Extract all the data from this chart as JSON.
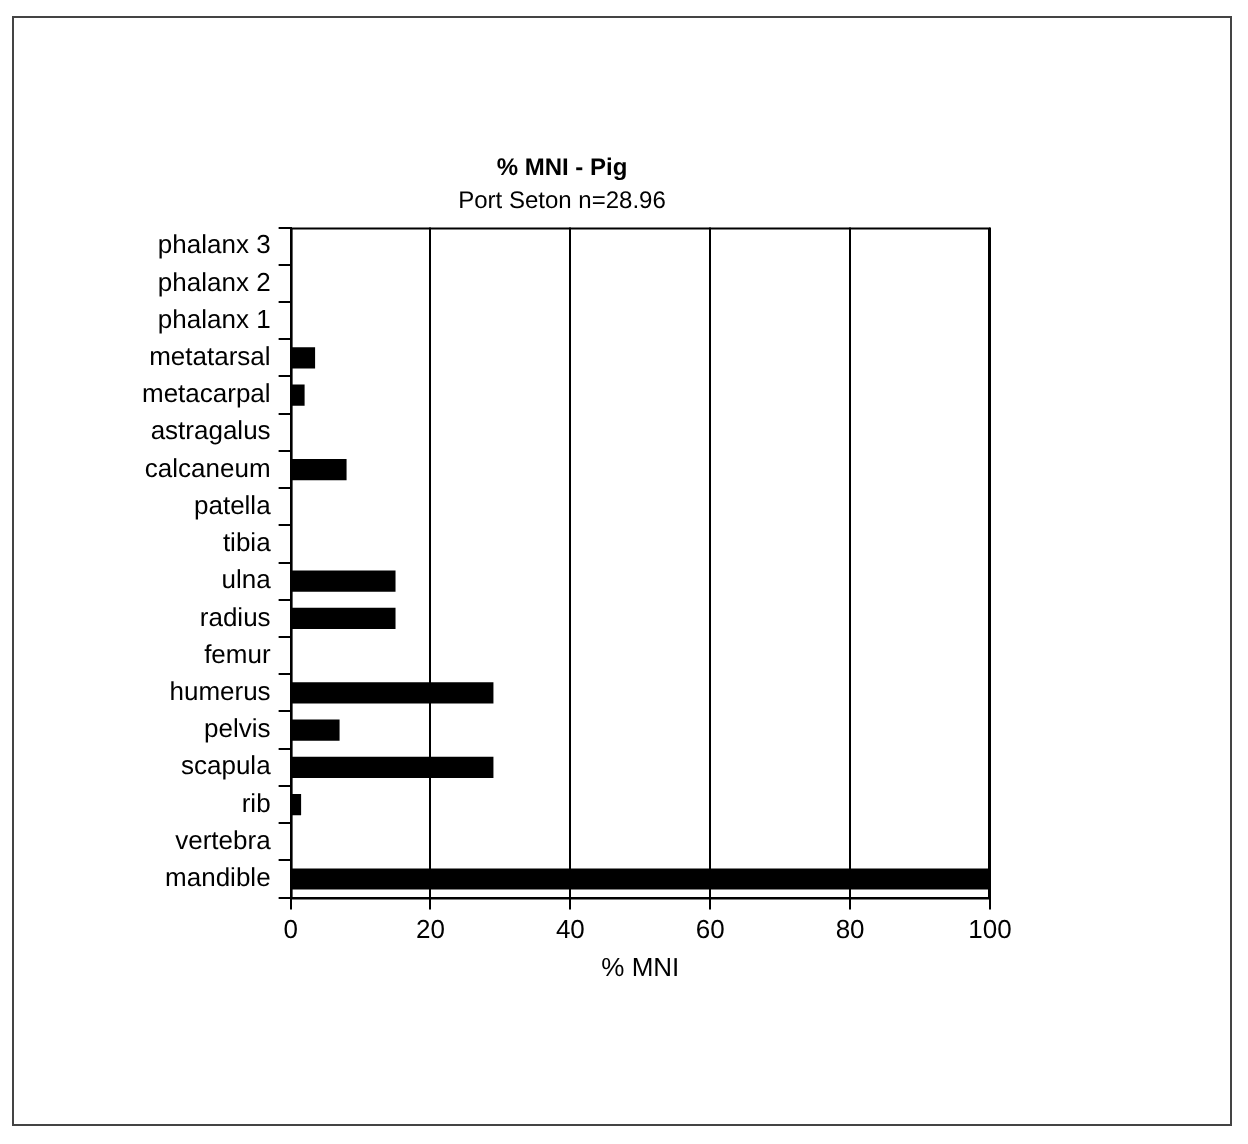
{
  "chart_data": {
    "type": "bar",
    "orientation": "horizontal",
    "title": "% MNI - Pig",
    "subtitle": "Port Seton n=28.96",
    "xlabel": "% MNI",
    "categories": [
      "phalanx 3",
      "phalanx 2",
      "phalanx 1",
      "metatarsal",
      "metacarpal",
      "astragalus",
      "calcaneum",
      "patella",
      "tibia",
      "ulna",
      "radius",
      "femur",
      "humerus",
      "pelvis",
      "scapula",
      "rib",
      "vertebra",
      "mandible"
    ],
    "values": [
      0,
      0,
      0,
      3.5,
      2,
      null,
      8,
      null,
      0,
      15,
      15,
      0,
      29,
      7,
      29,
      1.5,
      0,
      100
    ],
    "color": "#000000",
    "xlim": [
      0,
      100
    ],
    "xticks": [
      0,
      20,
      40,
      60,
      80,
      100
    ],
    "grid": "x",
    "legend": false
  }
}
